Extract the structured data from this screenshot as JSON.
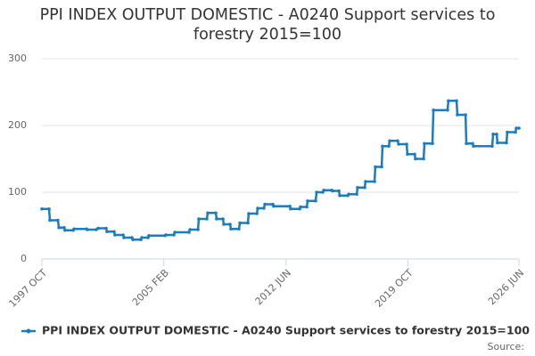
{
  "chart_data": {
    "type": "line",
    "title": "PPI INDEX OUTPUT DOMESTIC - A0240 Support services to forestry 2015=100",
    "source": "Source:",
    "x": [
      1997.75,
      1998.18,
      1998.23,
      1998.71,
      1998.77,
      1999.09,
      1999.14,
      1999.63,
      1999.68,
      2000.43,
      2000.48,
      2001.02,
      2001.13,
      2001.61,
      2001.66,
      2002.09,
      2002.14,
      2002.63,
      2002.68,
      2003.16,
      2003.22,
      2003.7,
      2003.75,
      2004.13,
      2004.18,
      2005.15,
      2005.2,
      2005.68,
      2005.74,
      2006.59,
      2006.65,
      2007.13,
      2007.18,
      2007.66,
      2007.72,
      2008.2,
      2008.25,
      2008.63,
      2008.68,
      2009.06,
      2009.11,
      2009.59,
      2009.65,
      2010.13,
      2010.18,
      2010.67,
      2010.72,
      2011.09,
      2011.15,
      2011.63,
      2011.68,
      2012.65,
      2012.7,
      2013.24,
      2013.29,
      2013.67,
      2013.72,
      2014.2,
      2014.26,
      2014.63,
      2014.69,
      2015.17,
      2015.22,
      2015.6,
      2015.65,
      2016.13,
      2016.19,
      2016.67,
      2016.72,
      2017.15,
      2017.2,
      2017.74,
      2017.79,
      2018.17,
      2018.22,
      2018.6,
      2018.65,
      2019.13,
      2019.19,
      2019.67,
      2019.72,
      2020.15,
      2020.2,
      2020.69,
      2020.74,
      2021.22,
      2021.28,
      2022.13,
      2022.18,
      2022.67,
      2022.72,
      2023.21,
      2023.26,
      2023.63,
      2023.69,
      2024.81,
      2024.87,
      2025.08,
      2025.13,
      2025.67,
      2025.72,
      2026.21,
      2026.26,
      2026.42
    ],
    "series": [
      {
        "name": "PPI INDEX OUTPUT DOMESTIC - A0240 Support services to forestry 2015=100",
        "color": "#1a7dbf",
        "values": [
          75,
          75,
          58,
          58,
          47,
          47,
          43,
          43,
          45,
          45,
          44,
          44,
          46,
          46,
          41,
          41,
          36,
          36,
          32,
          32,
          29,
          29,
          32,
          32,
          35,
          35,
          36,
          36,
          40,
          40,
          44,
          44,
          60,
          60,
          69,
          69,
          60,
          60,
          52,
          52,
          45,
          45,
          54,
          54,
          68,
          68,
          76,
          76,
          82,
          82,
          79,
          79,
          75,
          75,
          78,
          78,
          87,
          87,
          100,
          100,
          103,
          103,
          102,
          102,
          95,
          95,
          97,
          97,
          107,
          107,
          116,
          116,
          138,
          138,
          169,
          169,
          177,
          177,
          172,
          172,
          157,
          157,
          150,
          150,
          173,
          173,
          223,
          223,
          237,
          237,
          216,
          216,
          173,
          173,
          169,
          169,
          187,
          187,
          174,
          174,
          190,
          190,
          196,
          196
        ]
      }
    ],
    "xlim": [
      1997.75,
      2026.42
    ],
    "xticks": [
      {
        "value": 1997.75,
        "label": "1997 OCT"
      },
      {
        "value": 2005.08,
        "label": "2005 FEB"
      },
      {
        "value": 2012.42,
        "label": "2012 JUN"
      },
      {
        "value": 2019.75,
        "label": "2019 OCT"
      },
      {
        "value": 2026.42,
        "label": "2026 JUN"
      }
    ],
    "ylim": [
      0,
      300
    ],
    "yticks": [
      0,
      100,
      200,
      300
    ],
    "grid": true
  }
}
